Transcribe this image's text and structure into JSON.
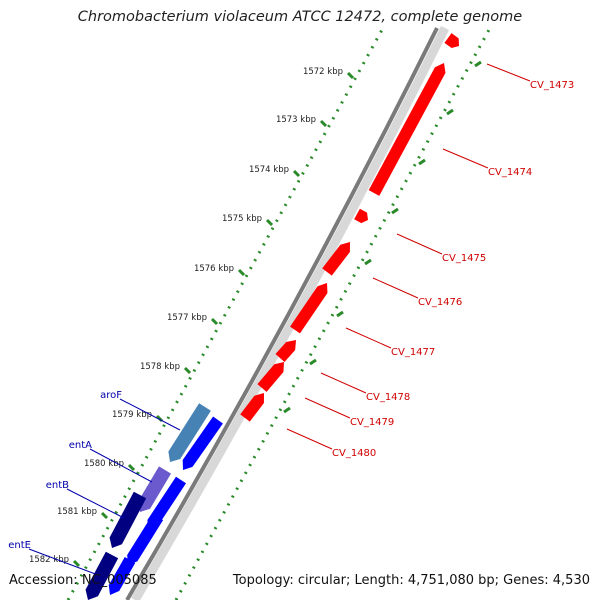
{
  "title": "Chromobacterium violaceum ATCC 12472, complete genome",
  "footer": {
    "accession": "Accession: NC_005085",
    "topology": "Topology: circular; Length: 4,751,080 bp; Genes: 4,530"
  },
  "colors": {
    "forward_gene": "#ff0000",
    "reverse_gene": "#0000ff",
    "reverse_gene_dark": "#000080",
    "highlight_gene": "#4682b4",
    "highlight_gene_2": "#6a5acd",
    "forward_label": "#d00000",
    "reverse_label": "#0000aa",
    "tick": "#2a8a2a",
    "backbone": "#888888"
  },
  "scale_labels": [
    "1572 kbp",
    "1573 kbp",
    "1574 kbp",
    "1575 kbp",
    "1576 kbp",
    "1577 kbp",
    "1578 kbp",
    "1579 kbp",
    "1580 kbp",
    "1581 kbp",
    "1582 kbp"
  ],
  "forward_genes": [
    "CV_1473",
    "CV_1474",
    "CV_1475",
    "CV_1476",
    "CV_1477",
    "CV_1478",
    "CV_1479",
    "CV_1480"
  ],
  "reverse_genes": [
    "aroF",
    "entA",
    "entB",
    "entE"
  ]
}
